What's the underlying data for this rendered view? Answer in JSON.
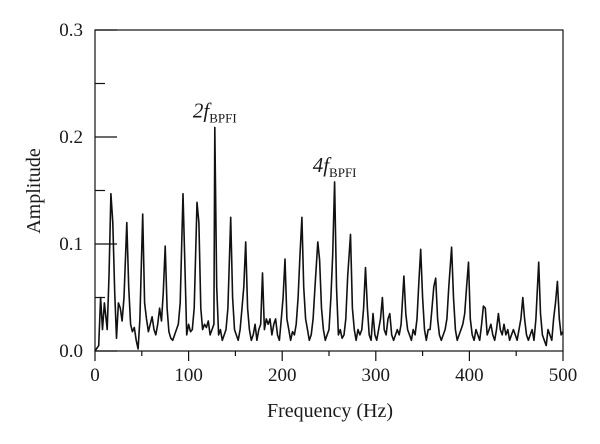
{
  "chart_data": {
    "type": "line",
    "title": "",
    "xlabel": "Frequency (Hz)",
    "ylabel": "Amplitude",
    "xlim": [
      0,
      500
    ],
    "ylim": [
      0,
      0.3
    ],
    "xticks": [
      0,
      100,
      200,
      300,
      400,
      500
    ],
    "xtick_labels": [
      "0",
      "100",
      "200",
      "300",
      "400",
      "500"
    ],
    "yticks": [
      0,
      0.1,
      0.2,
      0.3
    ],
    "ytick_labels": [
      "0.0",
      "0.1",
      "0.2",
      "0.3"
    ],
    "grid": false,
    "legend": "none",
    "line_color": "#111111",
    "annotations": [
      {
        "prefix": "2f",
        "subscript": "BPFI",
        "x": 128,
        "y": 0.209
      },
      {
        "prefix": "4f",
        "subscript": "BPFI",
        "x": 256,
        "y": 0.158
      }
    ],
    "series": [
      {
        "values": [
          [
            0,
            0.0
          ],
          [
            4,
            0.005
          ],
          [
            6,
            0.05
          ],
          [
            8,
            0.02
          ],
          [
            10,
            0.045
          ],
          [
            13,
            0.02
          ],
          [
            15,
            0.07
          ],
          [
            17,
            0.147
          ],
          [
            19,
            0.12
          ],
          [
            21,
            0.055
          ],
          [
            23,
            0.012
          ],
          [
            25,
            0.045
          ],
          [
            27,
            0.04
          ],
          [
            29,
            0.028
          ],
          [
            31,
            0.05
          ],
          [
            34,
            0.12
          ],
          [
            36,
            0.06
          ],
          [
            38,
            0.025
          ],
          [
            40,
            0.018
          ],
          [
            42,
            0.022
          ],
          [
            44,
            0.01
          ],
          [
            46,
            0.002
          ],
          [
            48,
            0.03
          ],
          [
            51,
            0.128
          ],
          [
            53,
            0.045
          ],
          [
            55,
            0.03
          ],
          [
            57,
            0.018
          ],
          [
            59,
            0.025
          ],
          [
            61,
            0.032
          ],
          [
            63,
            0.02
          ],
          [
            65,
            0.015
          ],
          [
            67,
            0.025
          ],
          [
            69,
            0.04
          ],
          [
            71,
            0.028
          ],
          [
            73,
            0.055
          ],
          [
            75,
            0.098
          ],
          [
            77,
            0.04
          ],
          [
            79,
            0.018
          ],
          [
            81,
            0.012
          ],
          [
            83,
            0.01
          ],
          [
            85,
            0.015
          ],
          [
            87,
            0.02
          ],
          [
            89,
            0.025
          ],
          [
            91,
            0.045
          ],
          [
            94,
            0.147
          ],
          [
            96,
            0.08
          ],
          [
            98,
            0.015
          ],
          [
            100,
            0.025
          ],
          [
            102,
            0.018
          ],
          [
            104,
            0.02
          ],
          [
            106,
            0.04
          ],
          [
            109,
            0.139
          ],
          [
            111,
            0.12
          ],
          [
            113,
            0.04
          ],
          [
            115,
            0.02
          ],
          [
            117,
            0.025
          ],
          [
            119,
            0.022
          ],
          [
            121,
            0.028
          ],
          [
            123,
            0.015
          ],
          [
            125,
            0.02
          ],
          [
            127,
            0.025
          ],
          [
            128,
            0.209
          ],
          [
            130,
            0.06
          ],
          [
            132,
            0.015
          ],
          [
            134,
            0.02
          ],
          [
            136,
            0.01
          ],
          [
            138,
            0.015
          ],
          [
            140,
            0.02
          ],
          [
            142,
            0.04
          ],
          [
            145,
            0.125
          ],
          [
            147,
            0.05
          ],
          [
            149,
            0.02
          ],
          [
            151,
            0.015
          ],
          [
            153,
            0.01
          ],
          [
            155,
            0.02
          ],
          [
            157,
            0.04
          ],
          [
            159,
            0.06
          ],
          [
            161,
            0.102
          ],
          [
            163,
            0.04
          ],
          [
            165,
            0.02
          ],
          [
            167,
            0.01
          ],
          [
            169,
            0.015
          ],
          [
            171,
            0.025
          ],
          [
            173,
            0.01
          ],
          [
            175,
            0.02
          ],
          [
            177,
            0.025
          ],
          [
            179,
            0.073
          ],
          [
            181,
            0.02
          ],
          [
            183,
            0.03
          ],
          [
            185,
            0.025
          ],
          [
            187,
            0.03
          ],
          [
            189,
            0.015
          ],
          [
            191,
            0.025
          ],
          [
            193,
            0.03
          ],
          [
            195,
            0.015
          ],
          [
            197,
            0.01
          ],
          [
            199,
            0.03
          ],
          [
            201,
            0.05
          ],
          [
            203,
            0.086
          ],
          [
            205,
            0.03
          ],
          [
            207,
            0.02
          ],
          [
            209,
            0.01
          ],
          [
            211,
            0.018
          ],
          [
            213,
            0.015
          ],
          [
            215,
            0.025
          ],
          [
            217,
            0.05
          ],
          [
            219,
            0.09
          ],
          [
            221,
            0.125
          ],
          [
            223,
            0.06
          ],
          [
            225,
            0.03
          ],
          [
            227,
            0.02
          ],
          [
            229,
            0.01
          ],
          [
            231,
            0.015
          ],
          [
            233,
            0.03
          ],
          [
            235,
            0.06
          ],
          [
            238,
            0.102
          ],
          [
            240,
            0.085
          ],
          [
            242,
            0.04
          ],
          [
            244,
            0.02
          ],
          [
            246,
            0.01
          ],
          [
            248,
            0.015
          ],
          [
            250,
            0.02
          ],
          [
            252,
            0.05
          ],
          [
            254,
            0.09
          ],
          [
            256,
            0.158
          ],
          [
            258,
            0.06
          ],
          [
            260,
            0.015
          ],
          [
            262,
            0.02
          ],
          [
            264,
            0.012
          ],
          [
            266,
            0.015
          ],
          [
            268,
            0.03
          ],
          [
            270,
            0.07
          ],
          [
            273,
            0.109
          ],
          [
            275,
            0.04
          ],
          [
            277,
            0.02
          ],
          [
            279,
            0.01
          ],
          [
            281,
            0.02
          ],
          [
            283,
            0.015
          ],
          [
            285,
            0.02
          ],
          [
            287,
            0.04
          ],
          [
            289,
            0.078
          ],
          [
            291,
            0.04
          ],
          [
            293,
            0.015
          ],
          [
            295,
            0.01
          ],
          [
            297,
            0.035
          ],
          [
            299,
            0.015
          ],
          [
            301,
            0.01
          ],
          [
            303,
            0.02
          ],
          [
            305,
            0.03
          ],
          [
            307,
            0.05
          ],
          [
            309,
            0.02
          ],
          [
            311,
            0.015
          ],
          [
            313,
            0.03
          ],
          [
            315,
            0.035
          ],
          [
            317,
            0.015
          ],
          [
            319,
            0.01
          ],
          [
            321,
            0.015
          ],
          [
            323,
            0.02
          ],
          [
            325,
            0.015
          ],
          [
            327,
            0.025
          ],
          [
            330,
            0.07
          ],
          [
            332,
            0.035
          ],
          [
            334,
            0.02
          ],
          [
            336,
            0.015
          ],
          [
            338,
            0.01
          ],
          [
            340,
            0.02
          ],
          [
            342,
            0.015
          ],
          [
            344,
            0.03
          ],
          [
            346,
            0.065
          ],
          [
            348,
            0.095
          ],
          [
            350,
            0.05
          ],
          [
            352,
            0.02
          ],
          [
            354,
            0.01
          ],
          [
            356,
            0.02
          ],
          [
            358,
            0.02
          ],
          [
            360,
            0.04
          ],
          [
            362,
            0.06
          ],
          [
            364,
            0.068
          ],
          [
            366,
            0.03
          ],
          [
            368,
            0.015
          ],
          [
            370,
            0.01
          ],
          [
            372,
            0.015
          ],
          [
            374,
            0.02
          ],
          [
            376,
            0.03
          ],
          [
            378,
            0.06
          ],
          [
            381,
            0.097
          ],
          [
            383,
            0.05
          ],
          [
            385,
            0.02
          ],
          [
            387,
            0.01
          ],
          [
            389,
            0.015
          ],
          [
            391,
            0.02
          ],
          [
            393,
            0.025
          ],
          [
            395,
            0.035
          ],
          [
            397,
            0.06
          ],
          [
            399,
            0.083
          ],
          [
            401,
            0.03
          ],
          [
            403,
            0.015
          ],
          [
            405,
            0.01
          ],
          [
            407,
            0.02
          ],
          [
            409,
            0.015
          ],
          [
            411,
            0.01
          ],
          [
            413,
            0.025
          ],
          [
            415,
            0.042
          ],
          [
            417,
            0.04
          ],
          [
            419,
            0.015
          ],
          [
            421,
            0.02
          ],
          [
            423,
            0.025
          ],
          [
            425,
            0.015
          ],
          [
            427,
            0.01
          ],
          [
            429,
            0.02
          ],
          [
            431,
            0.035
          ],
          [
            433,
            0.02
          ],
          [
            435,
            0.015
          ],
          [
            437,
            0.025
          ],
          [
            439,
            0.015
          ],
          [
            441,
            0.02
          ],
          [
            443,
            0.01
          ],
          [
            445,
            0.015
          ],
          [
            447,
            0.02
          ],
          [
            449,
            0.015
          ],
          [
            451,
            0.01
          ],
          [
            453,
            0.02
          ],
          [
            455,
            0.03
          ],
          [
            457,
            0.05
          ],
          [
            459,
            0.03
          ],
          [
            461,
            0.015
          ],
          [
            463,
            0.01
          ],
          [
            465,
            0.015
          ],
          [
            467,
            0.02
          ],
          [
            469,
            0.01
          ],
          [
            471,
            0.03
          ],
          [
            474,
            0.083
          ],
          [
            476,
            0.035
          ],
          [
            478,
            0.015
          ],
          [
            480,
            0.01
          ],
          [
            482,
            0.005
          ],
          [
            484,
            0.02
          ],
          [
            486,
            0.015
          ],
          [
            488,
            0.01
          ],
          [
            490,
            0.03
          ],
          [
            492,
            0.045
          ],
          [
            494,
            0.065
          ],
          [
            496,
            0.03
          ],
          [
            498,
            0.015
          ],
          [
            500,
            0.018
          ]
        ]
      }
    ]
  }
}
